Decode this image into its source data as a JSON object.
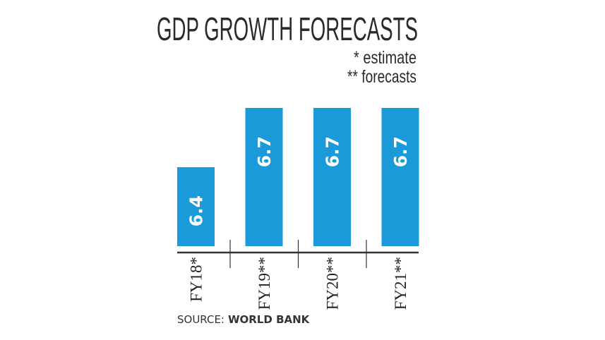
{
  "chart_data": {
    "type": "bar",
    "title": "GDP GROWTH FORECASTS",
    "notes": [
      "* estimate",
      "** forecasts"
    ],
    "categories": [
      "FY18*",
      "FY19**",
      "FY20**",
      "FY21**"
    ],
    "values": [
      6.4,
      6.7,
      6.7,
      6.7
    ],
    "data_labels": [
      "6.4",
      "6.7",
      "6.7",
      "6.7"
    ],
    "xlabel": "",
    "ylabel": "",
    "ylim": [
      6.0,
      6.7
    ],
    "grid": false,
    "bar_color": "#1a9ad9",
    "source_prefix": "SOURCE:",
    "source": "WORLD BANK"
  }
}
